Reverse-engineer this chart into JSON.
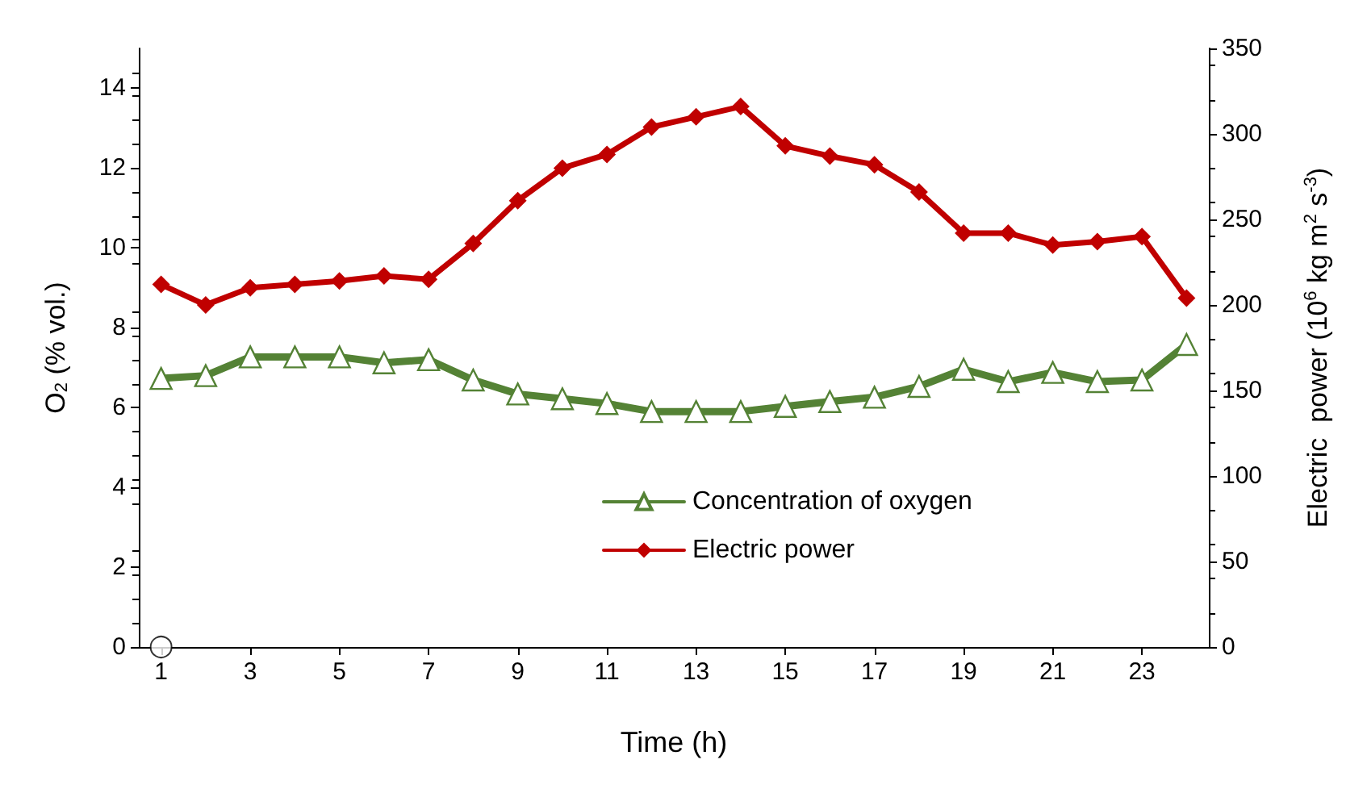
{
  "chart_data": {
    "type": "line",
    "xlabel": "Time (h)",
    "ylabel": "O$_{2}$ (% vol.)",
    "y2label": "Electric  power (10$^{6}$ kg m$^{2}$ s$^{-3}$)",
    "x": [
      1,
      2,
      3,
      4,
      5,
      6,
      7,
      8,
      9,
      10,
      11,
      12,
      13,
      14,
      15,
      16,
      17,
      18,
      19,
      20,
      21,
      22,
      23,
      24
    ],
    "xlim": [
      0.5,
      24.5
    ],
    "xticks": [
      1,
      3,
      5,
      7,
      9,
      11,
      13,
      15,
      17,
      19,
      21,
      23
    ],
    "series": [
      {
        "name": "Concentration of oxygen",
        "color": "#548235",
        "marker": "triangle",
        "values": [
          6.73,
          6.8,
          7.27,
          7.27,
          7.27,
          7.12,
          7.2,
          6.69,
          6.34,
          6.22,
          6.1,
          5.9,
          5.9,
          5.9,
          6.03,
          6.15,
          6.26,
          6.53,
          6.96,
          6.65,
          6.88,
          6.65,
          6.69,
          7.58
        ]
      },
      {
        "name": "Electric power",
        "color": "#c00000",
        "marker": "diamond",
        "axis": "y2",
        "values": [
          212,
          200,
          210,
          212,
          214,
          217,
          215,
          236,
          261,
          280,
          288,
          304,
          310,
          316,
          293,
          287,
          282,
          266,
          242,
          242,
          235,
          237,
          240,
          204
        ]
      },
      {
        "type": "scatter",
        "color": "#ffffff",
        "marker": "circle",
        "x": [
          1
        ],
        "values": [
          0
        ]
      }
    ],
    "ylim": [
      0,
      15
    ],
    "yticks": [
      0,
      2,
      4,
      6,
      8,
      10,
      12,
      14
    ],
    "y2lim": [
      0,
      350
    ],
    "y2ticks": [
      0,
      50,
      100,
      150,
      200,
      250,
      300,
      350
    ],
    "grid": false,
    "legend": "bottom right"
  }
}
